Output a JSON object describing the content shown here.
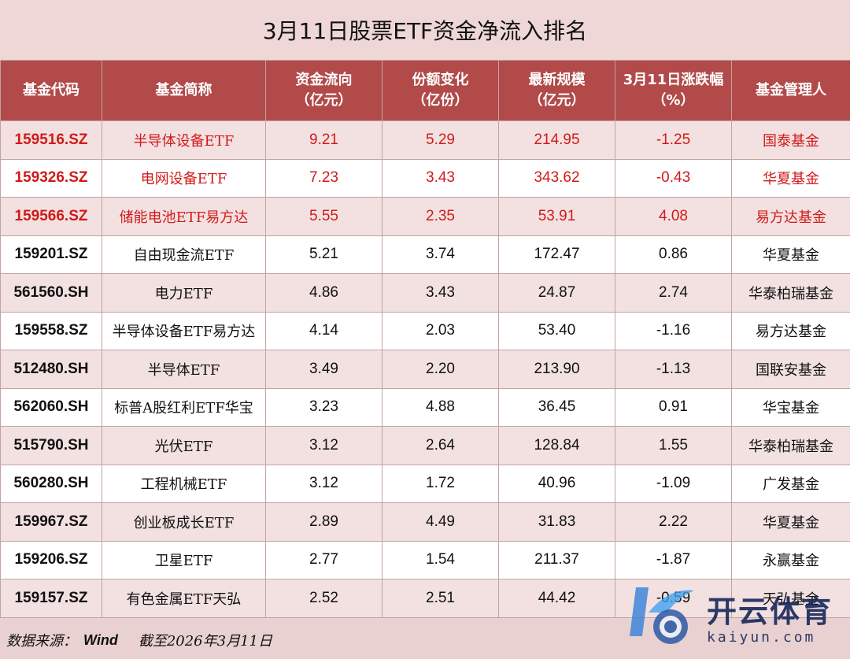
{
  "title": "3月11日股票ETF资金净流入排名",
  "headers": [
    {
      "l1": "基金代码",
      "l2": ""
    },
    {
      "l1": "基金简称",
      "l2": ""
    },
    {
      "l1": "资金流向",
      "l2": "（亿元）"
    },
    {
      "l1": "份额变化",
      "l2": "（亿份）"
    },
    {
      "l1": "最新规模",
      "l2": "（亿元）"
    },
    {
      "l1": "3月11日涨跌幅",
      "l2": "（%）"
    },
    {
      "l1": "基金管理人",
      "l2": ""
    }
  ],
  "rows": [
    {
      "code": "159516.SZ",
      "name": "半导体设备ETF",
      "flow": "9.21",
      "share": "5.29",
      "scale": "214.95",
      "chg": "-1.25",
      "mgr": "国泰基金",
      "highlight": true,
      "shade": true
    },
    {
      "code": "159326.SZ",
      "name": "电网设备ETF",
      "flow": "7.23",
      "share": "3.43",
      "scale": "343.62",
      "chg": "-0.43",
      "mgr": "华夏基金",
      "highlight": true,
      "shade": false
    },
    {
      "code": "159566.SZ",
      "name": "储能电池ETF易方达",
      "flow": "5.55",
      "share": "2.35",
      "scale": "53.91",
      "chg": "4.08",
      "mgr": "易方达基金",
      "highlight": true,
      "shade": true
    },
    {
      "code": "159201.SZ",
      "name": "自由现金流ETF",
      "flow": "5.21",
      "share": "3.74",
      "scale": "172.47",
      "chg": "0.86",
      "mgr": "华夏基金",
      "highlight": false,
      "shade": false
    },
    {
      "code": "561560.SH",
      "name": "电力ETF",
      "flow": "4.86",
      "share": "3.43",
      "scale": "24.87",
      "chg": "2.74",
      "mgr": "华泰柏瑞基金",
      "highlight": false,
      "shade": true
    },
    {
      "code": "159558.SZ",
      "name": "半导体设备ETF易方达",
      "flow": "4.14",
      "share": "2.03",
      "scale": "53.40",
      "chg": "-1.16",
      "mgr": "易方达基金",
      "highlight": false,
      "shade": false
    },
    {
      "code": "512480.SH",
      "name": "半导体ETF",
      "flow": "3.49",
      "share": "2.20",
      "scale": "213.90",
      "chg": "-1.13",
      "mgr": "国联安基金",
      "highlight": false,
      "shade": true
    },
    {
      "code": "562060.SH",
      "name": "标普A股红利ETF华宝",
      "flow": "3.23",
      "share": "4.88",
      "scale": "36.45",
      "chg": "0.91",
      "mgr": "华宝基金",
      "highlight": false,
      "shade": false
    },
    {
      "code": "515790.SH",
      "name": "光伏ETF",
      "flow": "3.12",
      "share": "2.64",
      "scale": "128.84",
      "chg": "1.55",
      "mgr": "华泰柏瑞基金",
      "highlight": false,
      "shade": true
    },
    {
      "code": "560280.SH",
      "name": "工程机械ETF",
      "flow": "3.12",
      "share": "1.72",
      "scale": "40.96",
      "chg": "-1.09",
      "mgr": "广发基金",
      "highlight": false,
      "shade": false
    },
    {
      "code": "159967.SZ",
      "name": "创业板成长ETF",
      "flow": "2.89",
      "share": "4.49",
      "scale": "31.83",
      "chg": "2.22",
      "mgr": "华夏基金",
      "highlight": false,
      "shade": true
    },
    {
      "code": "159206.SZ",
      "name": "卫星ETF",
      "flow": "2.77",
      "share": "1.54",
      "scale": "211.37",
      "chg": "-1.87",
      "mgr": "永赢基金",
      "highlight": false,
      "shade": false
    },
    {
      "code": "159157.SZ",
      "name": "有色金属ETF天弘",
      "flow": "2.52",
      "share": "2.51",
      "scale": "44.42",
      "chg": "-0.59",
      "mgr": "天弘基金",
      "highlight": false,
      "shade": true
    }
  ],
  "footer": {
    "source_label": "数据来源：",
    "source": "Wind",
    "date": "截至2026年3月11日"
  },
  "watermark": {
    "cn": "开云体育",
    "en": "kaiyun.com"
  },
  "colors": {
    "header_bg": "#b24a4a",
    "highlight_text": "#d11a1a",
    "shade_bg": "#f3e1e1"
  }
}
